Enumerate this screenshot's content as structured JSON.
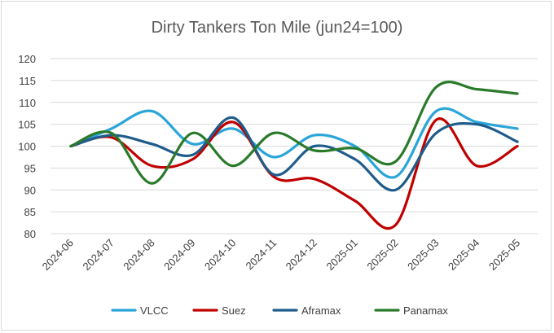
{
  "chart_data": {
    "type": "line",
    "title": "Dirty Tankers Ton Mile (jun24=100)",
    "xlabel": "",
    "ylabel": "",
    "categories": [
      "2024-06",
      "2024-07",
      "2024-08",
      "2024-09",
      "2024-10",
      "2024-11",
      "2024-12",
      "2025-01",
      "2025-02",
      "2025-03",
      "2025-04",
      "2025-05"
    ],
    "ylim": [
      80,
      120
    ],
    "yticks": [
      80,
      85,
      90,
      95,
      100,
      105,
      110,
      115,
      120
    ],
    "grid": true,
    "legend_position": "bottom",
    "smooth": true,
    "series": [
      {
        "name": "VLCC",
        "color": "#2aa5d8",
        "values": [
          100,
          104,
          108,
          100.5,
          104,
          97.5,
          102.5,
          100,
          93,
          108,
          105.5,
          104
        ]
      },
      {
        "name": "Suez",
        "color": "#c00000",
        "values": [
          100,
          102,
          95.5,
          97,
          105.5,
          93,
          92.5,
          87.5,
          82,
          106,
          95.5,
          100
        ]
      },
      {
        "name": "Aframax",
        "color": "#1f5c8b",
        "values": [
          100,
          102.5,
          100.5,
          98,
          106.5,
          93.5,
          100,
          97,
          90,
          103,
          105,
          101
        ]
      },
      {
        "name": "Panamax",
        "color": "#2a7a2a",
        "values": [
          100,
          103,
          91.5,
          103,
          95.5,
          103,
          99,
          99.5,
          96.5,
          113.5,
          113,
          112
        ]
      }
    ]
  }
}
